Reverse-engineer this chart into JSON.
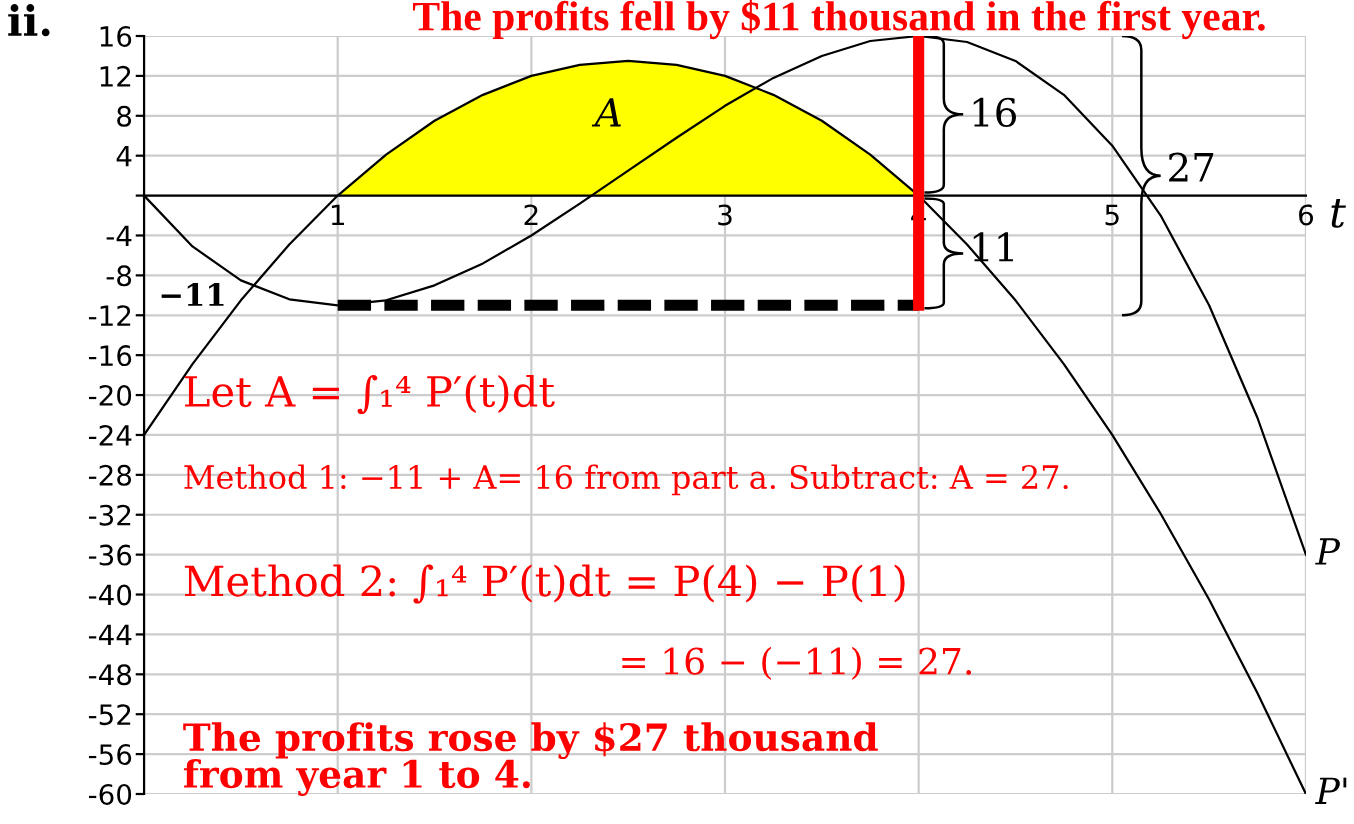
{
  "chart_data": {
    "type": "line",
    "title": "The profits fell by $11 thousand in the first year.",
    "xlabel": "t",
    "xlim": [
      0,
      6
    ],
    "ylim": [
      -60,
      16
    ],
    "xticks": [
      {
        "value": 0,
        "label": null
      },
      1,
      2,
      3,
      4,
      5,
      6
    ],
    "yticks": [
      -60,
      -56,
      -52,
      -48,
      -44,
      -40,
      -36,
      -32,
      -28,
      -24,
      -20,
      -16,
      -12,
      -8,
      -4,
      {
        "value": 0,
        "label": null
      },
      4,
      8,
      12,
      16
    ],
    "grid": true,
    "marker": "none",
    "series": [
      {
        "name": "P",
        "color": "#000000",
        "x": [
          0,
          0.25,
          0.5,
          0.75,
          1,
          1.25,
          1.5,
          1.75,
          2,
          2.25,
          2.5,
          2.75,
          3,
          3.25,
          3.5,
          3.75,
          4,
          4.25,
          4.5,
          4.75,
          5,
          5.25,
          5.5,
          5.75,
          6
        ],
        "values": [
          0,
          -5.1,
          -8.5,
          -10.4,
          -11,
          -10.5,
          -9,
          -6.8,
          -4,
          -0.8,
          2.5,
          5.8,
          9,
          11.8,
          14,
          15.5,
          16,
          15.4,
          13.5,
          10.1,
          5,
          -2,
          -11,
          -22.3,
          -36
        ]
      },
      {
        "name": "P'",
        "color": "#000000",
        "x": [
          0,
          0.25,
          0.5,
          0.75,
          1,
          1.25,
          1.5,
          1.75,
          2,
          2.25,
          2.5,
          2.75,
          3,
          3.25,
          3.5,
          3.75,
          4,
          4.25,
          4.5,
          4.75,
          5,
          5.25,
          5.5,
          5.75,
          6
        ],
        "values": [
          -24,
          -16.9,
          -10.5,
          -4.9,
          0,
          4.1,
          7.5,
          10.1,
          12,
          13.1,
          13.5,
          13.1,
          12,
          10.1,
          7.5,
          4.1,
          0,
          -4.9,
          -10.5,
          -16.9,
          -24,
          -31.9,
          -40.5,
          -49.9,
          -60
        ]
      },
      {
        "type": "area",
        "color": "#ffff00",
        "x": [
          1,
          1.25,
          1.5,
          1.75,
          2,
          2.25,
          2.5,
          2.75,
          3,
          3.25,
          3.5,
          3.75,
          4
        ],
        "values": [
          0,
          4.1,
          7.5,
          10.1,
          12,
          13.1,
          13.5,
          13.1,
          12,
          10.1,
          7.5,
          4.1,
          0
        ]
      },
      {
        "color": "#000000",
        "line_style": "dashed",
        "x": [
          1,
          4
        ],
        "values": [
          -11,
          -11
        ]
      },
      {
        "color": "#ff0000",
        "x": [
          4,
          4
        ],
        "values": [
          -11,
          16
        ]
      }
    ],
    "annotations": [
      "ii.",
      "A",
      "−11",
      "16",
      "11",
      "27",
      "Let A = ∫₁⁴ P′(t)dt",
      "Method 1: −11 + A= 16 from part a. Subtract: A = 27.",
      "Method 2: ∫₁⁴ P′(t)dt = P(4) − P(1)",
      "= 16 − (−11) = 27.",
      "The profits rose by $27 thousand\nfrom year 1 to 4."
    ]
  }
}
